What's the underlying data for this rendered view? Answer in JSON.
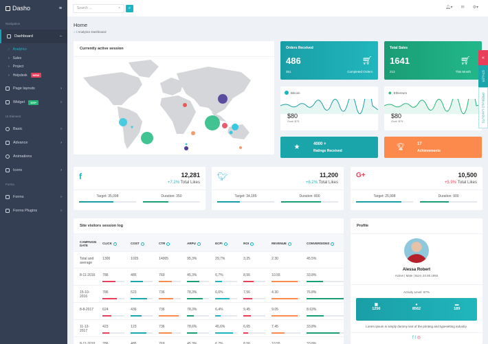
{
  "sidebar": {
    "brand": "Dasho",
    "section_navigation": "Navigation",
    "dashboard": "Dashboard",
    "sub": [
      {
        "label": "Analytics",
        "active": true
      },
      {
        "label": "Sales"
      },
      {
        "label": "Project"
      },
      {
        "label": "Helpdesk",
        "badge": "NEW",
        "badge_color": "#e83e5a"
      }
    ],
    "page_layouts": "Page layouts",
    "widget": "Widget",
    "widget_badge": "100+",
    "widget_badge_color": "#22b573",
    "section_ui": "UI Element",
    "ui_items": [
      "Basic",
      "Advance",
      "Animations",
      "Icons"
    ],
    "section_forms": "Forms",
    "form_items": [
      "Forms",
      "Forms Plugins"
    ]
  },
  "topbar": {
    "search_placeholder": "Search ...",
    "clear": "×"
  },
  "header": {
    "title": "Home",
    "breadcrumb": "Analytics Dashboard"
  },
  "map": {
    "title": "Currently active session"
  },
  "orders": {
    "title": "Orders Received",
    "value": "486",
    "sub": "351",
    "sub_label": "Completed Orders",
    "color": "#1aa5ab"
  },
  "sales": {
    "title": "Total Sales",
    "value": "1641",
    "sub": "213",
    "sub_label": "This Month",
    "color": "#1fab84"
  },
  "bitcoin": {
    "name": "Bitcoin",
    "price": "$80",
    "goal": "Goal: $75"
  },
  "ethereum": {
    "name": "Ethereum",
    "price": "$80",
    "goal": "Goal: $75"
  },
  "ratings": {
    "value": "4000 +",
    "label": "Ratings Received"
  },
  "achievements": {
    "value": "17",
    "label": "Achievements"
  },
  "social": [
    {
      "network": "facebook",
      "count": "12,281",
      "change": "+7.2%",
      "label": "Total Likes",
      "target": "Target: 35,098",
      "duration": "Duration: 350",
      "color": "#1bb5c1",
      "target_pct": 60,
      "duration_pct": 45
    },
    {
      "network": "twitter",
      "count": "11,200",
      "change": "+6.2%",
      "label": "Total Likes",
      "target": "Target: 34,185",
      "duration": "Duration: 800",
      "color": "#1bb5c1",
      "target_pct": 40,
      "duration_pct": 70
    },
    {
      "network": "google-plus",
      "count": "10,500",
      "change": "+5.9%",
      "label": "Total Likes",
      "target": "Target: 25,998",
      "duration": "Duration: 900",
      "color": "#e83e5a",
      "target_pct": 80,
      "duration_pct": 50
    }
  ],
  "session_log": {
    "title": "Site visitors session log",
    "columns": [
      "CAMPAIGN DATE",
      "CLICK",
      "COST",
      "CTR",
      "ARPU",
      "ECPI",
      "ROI",
      "REVENUE",
      "CONVERSIONS"
    ],
    "rows": [
      [
        "Total and average",
        "1300",
        "1025",
        "14005",
        "95,3%",
        "29,7%",
        "3,25",
        "2.30",
        "45.5%"
      ],
      [
        "8-11-2016",
        "786",
        "485",
        "769",
        "45,3%",
        "6,7%",
        "8,56",
        "10.55",
        "33.8%"
      ],
      [
        "15-10-2016",
        "786",
        "523",
        "736",
        "78,3%",
        "6,6%",
        "7,56",
        "4.30",
        "76.8%"
      ],
      [
        "8-8-2017",
        "624",
        "436",
        "736",
        "78,3%",
        "6,4%",
        "9,45",
        "9.05",
        "8.63%"
      ],
      [
        "11-12-2017",
        "423",
        "123",
        "736",
        "78,6%",
        "45,6%",
        "6,65",
        "7.45",
        "33.8%"
      ],
      [
        "8-11-2016",
        "786",
        "485",
        "769",
        "45,3%",
        "6,7%",
        "8,56",
        "10.55",
        "33.8%"
      ]
    ]
  },
  "profile": {
    "title": "Profile",
    "name": "Alessa Robert",
    "info": "Active | Male | Born 23.05.1992",
    "activity": "Activity Level: 87%",
    "stats": [
      "1256",
      "8562",
      "189"
    ],
    "bio": "Lorem Ipsum is simply dummy text of the printing and typesetting industry."
  },
  "side_tabs": {
    "close": "«",
    "styler": "STYLER",
    "layouts": "PREBUILD LAYOUTS"
  }
}
